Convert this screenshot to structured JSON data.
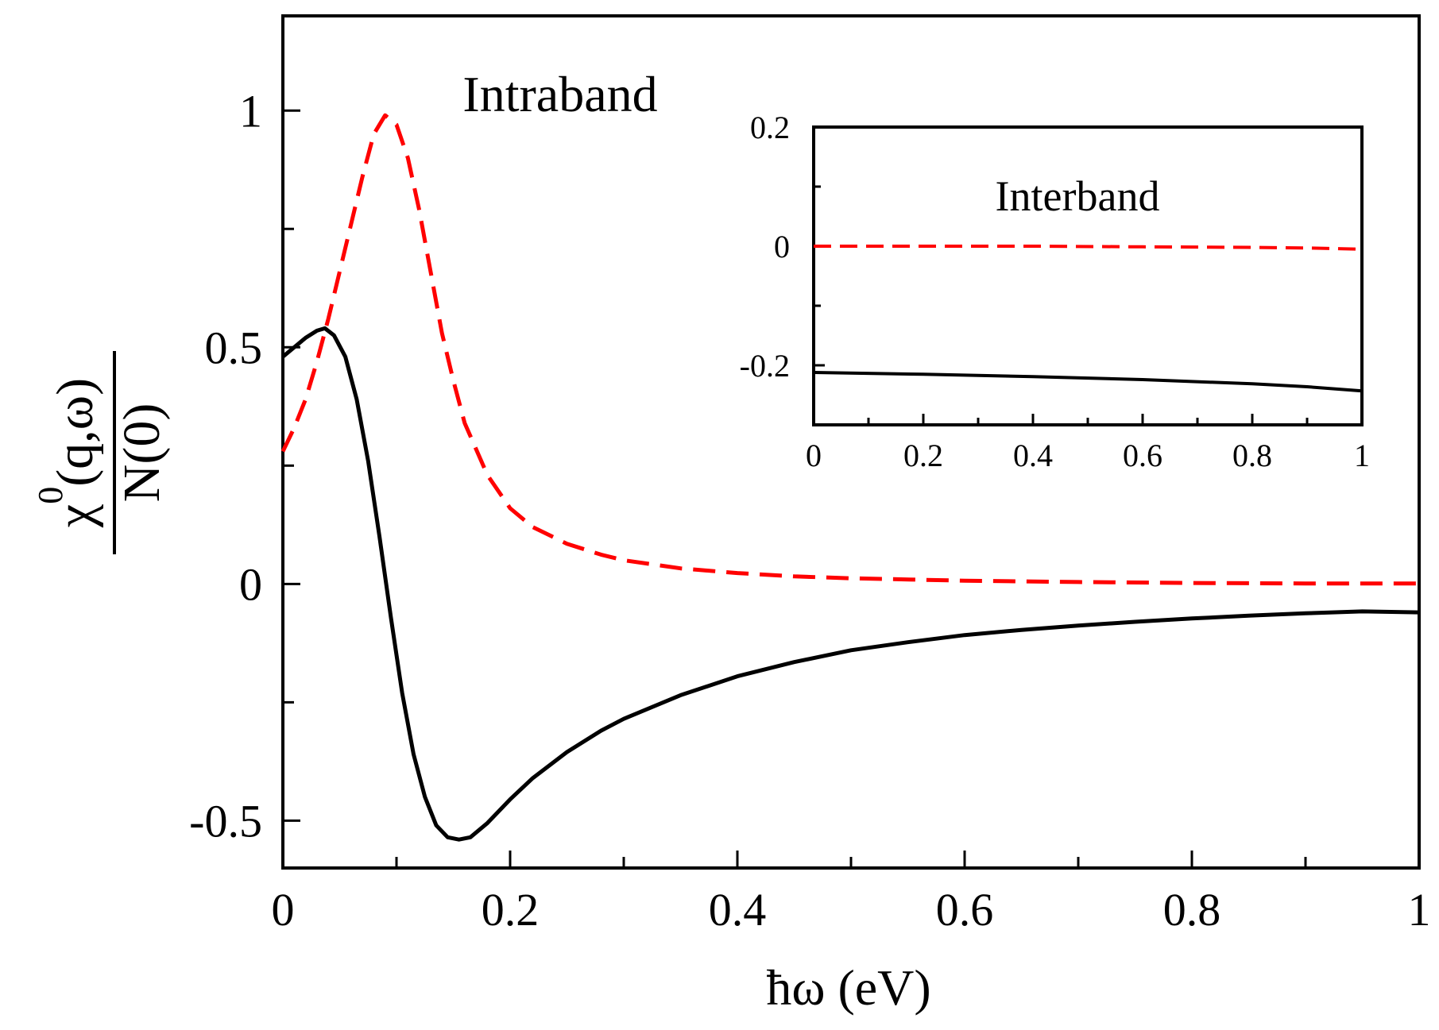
{
  "chart_data": [
    {
      "id": "main",
      "type": "line",
      "annotation": "Intraband",
      "xlabel": "ħω (eV)",
      "ylabel": {
        "numerator": "χ",
        "superscript": "0",
        "numerator_tail": "(q,ω)",
        "denominator": "N(0)"
      },
      "xlim": [
        0,
        1
      ],
      "ylim": [
        -0.6,
        1.2
      ],
      "x_ticks": [
        0,
        0.2,
        0.4,
        0.6,
        0.8,
        1
      ],
      "x_tick_labels": [
        "0",
        "0.2",
        "0.4",
        "0.6",
        "0.8",
        "1"
      ],
      "y_ticks": [
        -0.5,
        0,
        0.5,
        1
      ],
      "y_tick_labels": [
        "-0.5",
        "0",
        "0.5",
        "1"
      ],
      "grid": false,
      "series": [
        {
          "style": "solid",
          "color": "#000000",
          "points": [
            [
              0,
              0.48
            ],
            [
              0.01,
              0.5
            ],
            [
              0.02,
              0.52
            ],
            [
              0.03,
              0.535
            ],
            [
              0.037,
              0.54
            ],
            [
              0.045,
              0.525
            ],
            [
              0.055,
              0.48
            ],
            [
              0.065,
              0.39
            ],
            [
              0.075,
              0.26
            ],
            [
              0.085,
              0.1
            ],
            [
              0.095,
              -0.07
            ],
            [
              0.105,
              -0.23
            ],
            [
              0.115,
              -0.36
            ],
            [
              0.125,
              -0.45
            ],
            [
              0.135,
              -0.51
            ],
            [
              0.145,
              -0.535
            ],
            [
              0.155,
              -0.54
            ],
            [
              0.165,
              -0.535
            ],
            [
              0.18,
              -0.505
            ],
            [
              0.2,
              -0.455
            ],
            [
              0.22,
              -0.41
            ],
            [
              0.25,
              -0.355
            ],
            [
              0.28,
              -0.31
            ],
            [
              0.3,
              -0.285
            ],
            [
              0.35,
              -0.235
            ],
            [
              0.4,
              -0.195
            ],
            [
              0.45,
              -0.165
            ],
            [
              0.5,
              -0.14
            ],
            [
              0.55,
              -0.123
            ],
            [
              0.6,
              -0.108
            ],
            [
              0.65,
              -0.097
            ],
            [
              0.7,
              -0.088
            ],
            [
              0.75,
              -0.08
            ],
            [
              0.8,
              -0.073
            ],
            [
              0.85,
              -0.067
            ],
            [
              0.9,
              -0.062
            ],
            [
              0.95,
              -0.058
            ],
            [
              1,
              -0.06
            ]
          ]
        },
        {
          "style": "dashed",
          "color": "#ff0000",
          "points": [
            [
              0,
              0.28
            ],
            [
              0.01,
              0.33
            ],
            [
              0.02,
              0.39
            ],
            [
              0.03,
              0.47
            ],
            [
              0.04,
              0.56
            ],
            [
              0.05,
              0.66
            ],
            [
              0.06,
              0.76
            ],
            [
              0.07,
              0.86
            ],
            [
              0.08,
              0.95
            ],
            [
              0.09,
              0.99
            ],
            [
              0.1,
              0.97
            ],
            [
              0.11,
              0.9
            ],
            [
              0.12,
              0.79
            ],
            [
              0.13,
              0.66
            ],
            [
              0.14,
              0.53
            ],
            [
              0.15,
              0.43
            ],
            [
              0.16,
              0.34
            ],
            [
              0.18,
              0.23
            ],
            [
              0.2,
              0.16
            ],
            [
              0.22,
              0.12
            ],
            [
              0.25,
              0.085
            ],
            [
              0.28,
              0.062
            ],
            [
              0.3,
              0.05
            ],
            [
              0.35,
              0.033
            ],
            [
              0.4,
              0.023
            ],
            [
              0.45,
              0.016
            ],
            [
              0.5,
              0.012
            ],
            [
              0.6,
              0.007
            ],
            [
              0.7,
              0.004
            ],
            [
              0.8,
              0.002
            ],
            [
              0.9,
              0.001
            ],
            [
              1,
              0.001
            ]
          ]
        }
      ]
    },
    {
      "id": "inset",
      "type": "line",
      "annotation": "Interband",
      "xlim": [
        0,
        1
      ],
      "ylim": [
        -0.3,
        0.2
      ],
      "x_ticks": [
        0,
        0.2,
        0.4,
        0.6,
        0.8,
        1
      ],
      "x_tick_labels": [
        "0",
        "0.2",
        "0.4",
        "0.6",
        "0.8",
        "1"
      ],
      "y_ticks": [
        -0.2,
        0,
        0.2
      ],
      "y_tick_labels": [
        "-0.2",
        "0",
        "0.2"
      ],
      "grid": false,
      "series": [
        {
          "style": "solid",
          "color": "#000000",
          "points": [
            [
              0,
              -0.212
            ],
            [
              0.2,
              -0.215
            ],
            [
              0.4,
              -0.219
            ],
            [
              0.6,
              -0.224
            ],
            [
              0.8,
              -0.231
            ],
            [
              0.9,
              -0.236
            ],
            [
              1,
              -0.243
            ]
          ]
        },
        {
          "style": "dashed",
          "color": "#ff0000",
          "points": [
            [
              0,
              0
            ],
            [
              0.2,
              0
            ],
            [
              0.4,
              0
            ],
            [
              0.6,
              -0.001
            ],
            [
              0.8,
              -0.002
            ],
            [
              0.9,
              -0.003
            ],
            [
              1,
              -0.005
            ]
          ]
        }
      ]
    }
  ]
}
